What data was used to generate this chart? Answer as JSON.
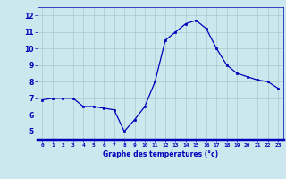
{
  "hours": [
    0,
    1,
    2,
    3,
    4,
    5,
    6,
    7,
    8,
    9,
    10,
    11,
    12,
    13,
    14,
    15,
    16,
    17,
    18,
    19,
    20,
    21,
    22,
    23
  ],
  "temps": [
    6.9,
    7.0,
    7.0,
    7.0,
    6.5,
    6.5,
    6.4,
    6.3,
    5.0,
    5.7,
    6.5,
    8.0,
    10.5,
    11.0,
    11.5,
    11.7,
    11.2,
    10.0,
    9.0,
    8.5,
    8.3,
    8.1,
    8.0,
    7.6
  ],
  "xlabel": "Graphe des températures (°c)",
  "ylim": [
    4.5,
    12.5
  ],
  "xlim": [
    -0.5,
    23.5
  ],
  "yticks": [
    5,
    6,
    7,
    8,
    9,
    10,
    11,
    12
  ],
  "xticks": [
    0,
    1,
    2,
    3,
    4,
    5,
    6,
    7,
    8,
    9,
    10,
    11,
    12,
    13,
    14,
    15,
    16,
    17,
    18,
    19,
    20,
    21,
    22,
    23
  ],
  "bg_color": "#cce8ee",
  "line_color": "#0000bb",
  "grid_color": "#aac8d0",
  "axis_color": "#0000bb",
  "label_color": "#0000bb",
  "bottom_bar_color": "#0000bb"
}
